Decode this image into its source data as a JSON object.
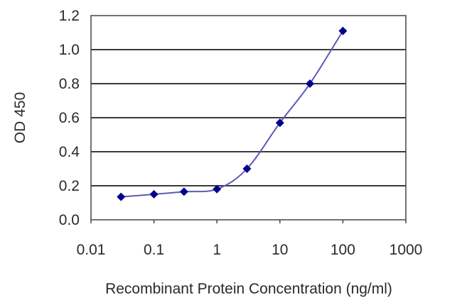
{
  "chart_data": {
    "type": "line",
    "title": "",
    "xlabel": "Recombinant Protein Concentration (ng/ml)",
    "ylabel": "OD 450",
    "x_scale": "log",
    "xlim": [
      0.01,
      1000
    ],
    "ylim": [
      0.0,
      1.2
    ],
    "x_ticks": [
      "0.01",
      "0.1",
      "1",
      "10",
      "100",
      "1000"
    ],
    "y_ticks": [
      "0.0",
      "0.2",
      "0.4",
      "0.6",
      "0.8",
      "1.0",
      "1.2"
    ],
    "grid": "horizontal",
    "legend": null,
    "series": [
      {
        "name": "OD 450",
        "color": "#00008b",
        "marker": "diamond",
        "x": [
          0.03,
          0.1,
          0.3,
          1,
          3,
          10,
          30,
          100
        ],
        "values": [
          0.135,
          0.15,
          0.165,
          0.18,
          0.3,
          0.57,
          0.8,
          1.11
        ]
      }
    ]
  }
}
